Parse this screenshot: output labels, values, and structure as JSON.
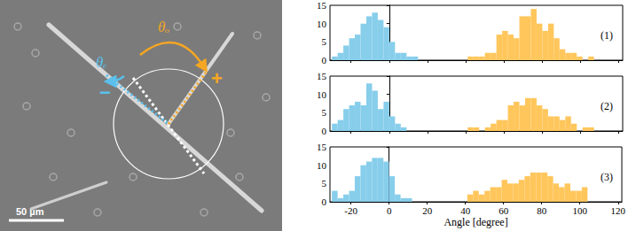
{
  "chart_data": [
    {
      "type": "histogram",
      "panel_label": "(1)",
      "xlim": [
        -31,
        122
      ],
      "xticks": [
        -20,
        0,
        20,
        40,
        60,
        80,
        100,
        120
      ],
      "ylim": [
        0,
        15
      ],
      "yticks": [
        0,
        5,
        10,
        15
      ],
      "tick_labels": "y",
      "series": [
        {
          "color": "#87ceeb",
          "bins": [
            -30,
            -27,
            -24,
            -21,
            -18,
            -15,
            -12,
            -9,
            -6,
            -3,
            0,
            3,
            6,
            9,
            12,
            15
          ],
          "counts": [
            1,
            2,
            4,
            6,
            7,
            10,
            12,
            13,
            11,
            9,
            5,
            2,
            2,
            1,
            1
          ]
        },
        {
          "color": "#ffc65c",
          "bins": [
            41,
            44,
            47,
            50,
            53,
            56,
            59,
            62,
            65,
            68,
            71,
            74,
            77,
            80,
            83,
            86,
            89,
            92,
            95,
            98,
            101,
            104,
            107
          ],
          "counts": [
            1,
            1,
            1,
            2,
            2,
            7,
            8,
            7,
            6,
            12,
            12,
            14,
            10,
            8,
            10,
            6,
            3,
            2,
            2,
            1,
            0,
            1
          ]
        }
      ]
    },
    {
      "type": "histogram",
      "panel_label": "(2)",
      "xlim": [
        -31,
        122
      ],
      "xticks": [
        -20,
        0,
        20,
        40,
        60,
        80,
        100,
        120
      ],
      "ylim": [
        0,
        15
      ],
      "yticks": [
        0,
        5,
        10,
        15
      ],
      "tick_labels": "y",
      "series": [
        {
          "color": "#87ceeb",
          "bins": [
            -30,
            -27,
            -24,
            -21,
            -18,
            -15,
            -12,
            -9,
            -6,
            -3,
            0,
            3,
            6,
            9,
            12,
            15
          ],
          "counts": [
            2,
            3,
            6,
            7,
            8,
            7,
            13,
            11,
            6,
            8,
            4,
            2,
            1,
            0,
            0
          ]
        },
        {
          "color": "#ffc65c",
          "bins": [
            41,
            44,
            47,
            50,
            53,
            56,
            59,
            62,
            65,
            68,
            71,
            74,
            77,
            80,
            83,
            86,
            89,
            92,
            95,
            98,
            101,
            104,
            107
          ],
          "counts": [
            1,
            1,
            0,
            1,
            2,
            3,
            3,
            7,
            8,
            7,
            9,
            9,
            7,
            6,
            4,
            4,
            3,
            4,
            2,
            0,
            1,
            1
          ]
        }
      ]
    },
    {
      "type": "histogram",
      "panel_label": "(3)",
      "xlabel": "Angle [degree]",
      "xlim": [
        -31,
        122
      ],
      "xticks": [
        -20,
        0,
        20,
        40,
        60,
        80,
        100,
        120
      ],
      "ylim": [
        0,
        15
      ],
      "yticks": [
        0,
        5,
        10,
        15
      ],
      "series": [
        {
          "color": "#87ceeb",
          "bins": [
            -30,
            -27,
            -24,
            -21,
            -18,
            -15,
            -12,
            -9,
            -6,
            -3,
            0,
            3,
            6,
            9,
            12,
            15
          ],
          "counts": [
            3,
            1,
            2,
            3,
            7,
            10,
            11,
            12,
            12,
            11,
            7,
            2,
            1,
            1,
            0
          ]
        },
        {
          "color": "#ffc65c",
          "bins": [
            41,
            44,
            47,
            50,
            53,
            56,
            59,
            62,
            65,
            68,
            71,
            74,
            77,
            80,
            83,
            86,
            89,
            92,
            95,
            98,
            101,
            104,
            107
          ],
          "counts": [
            2,
            3,
            2,
            3,
            4,
            4,
            6,
            5,
            5,
            6,
            7,
            8,
            8,
            8,
            7,
            5,
            4,
            5,
            3,
            3,
            4,
            0
          ]
        }
      ]
    }
  ],
  "image": {
    "angle_even_label": "θₑ",
    "angle_odd_label": "θₒ",
    "minus_end": "−",
    "plus_end": "+",
    "scale_bar": "50 µm",
    "even_color": "#5bc0eb",
    "odd_color": "#f5a623"
  }
}
